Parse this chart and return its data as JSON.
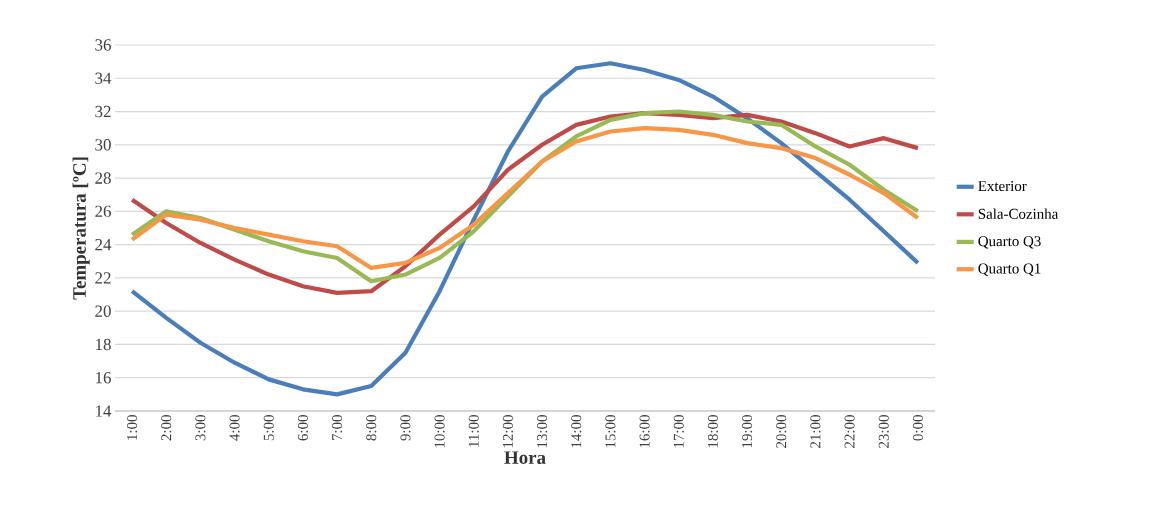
{
  "chart_data": {
    "type": "line",
    "xlabel": "Hora",
    "ylabel": "Temperatura [ºC]",
    "categories": [
      "1:00",
      "2:00",
      "3:00",
      "4:00",
      "5:00",
      "6:00",
      "7:00",
      "8:00",
      "9:00",
      "10:00",
      "11:00",
      "12:00",
      "13:00",
      "14:00",
      "15:00",
      "16:00",
      "17:00",
      "18:00",
      "19:00",
      "20:00",
      "21:00",
      "22:00",
      "23:00",
      "0:00"
    ],
    "series": [
      {
        "name": "Exterior",
        "color": "#4a7ebb",
        "values": [
          21.2,
          19.6,
          18.1,
          16.9,
          15.9,
          15.3,
          15.0,
          15.5,
          17.5,
          21.2,
          25.5,
          29.6,
          32.9,
          34.6,
          34.9,
          34.5,
          33.9,
          32.9,
          31.6,
          30.1,
          28.4,
          26.7,
          24.8,
          22.9
        ]
      },
      {
        "name": "Sala-Cozinha",
        "color": "#be4b48",
        "values": [
          26.7,
          25.3,
          24.1,
          23.1,
          22.2,
          21.5,
          21.1,
          21.2,
          22.7,
          24.6,
          26.3,
          28.5,
          30.0,
          31.2,
          31.7,
          31.9,
          31.8,
          31.6,
          31.8,
          31.4,
          30.7,
          29.9,
          30.4,
          29.8
        ]
      },
      {
        "name": "Quarto Q3",
        "color": "#98b954",
        "values": [
          24.6,
          26.0,
          25.6,
          24.9,
          24.2,
          23.6,
          23.2,
          21.8,
          22.2,
          23.2,
          24.8,
          26.9,
          29.0,
          30.5,
          31.5,
          31.9,
          32.0,
          31.8,
          31.4,
          31.2,
          29.9,
          28.8,
          27.3,
          26.0
        ]
      },
      {
        "name": "Quarto Q1",
        "color": "#f79646",
        "values": [
          24.3,
          25.8,
          25.5,
          25.0,
          24.6,
          24.2,
          23.9,
          22.6,
          22.9,
          23.8,
          25.2,
          27.1,
          29.0,
          30.2,
          30.8,
          31.0,
          30.9,
          30.6,
          30.1,
          29.8,
          29.2,
          28.2,
          27.1,
          25.6
        ]
      }
    ],
    "ylim": [
      14,
      36
    ],
    "yticks": [
      14,
      16,
      18,
      20,
      22,
      24,
      26,
      28,
      30,
      32,
      34,
      36
    ],
    "grid": "y",
    "legend": "right",
    "marker": "none",
    "line_style": "solid"
  }
}
